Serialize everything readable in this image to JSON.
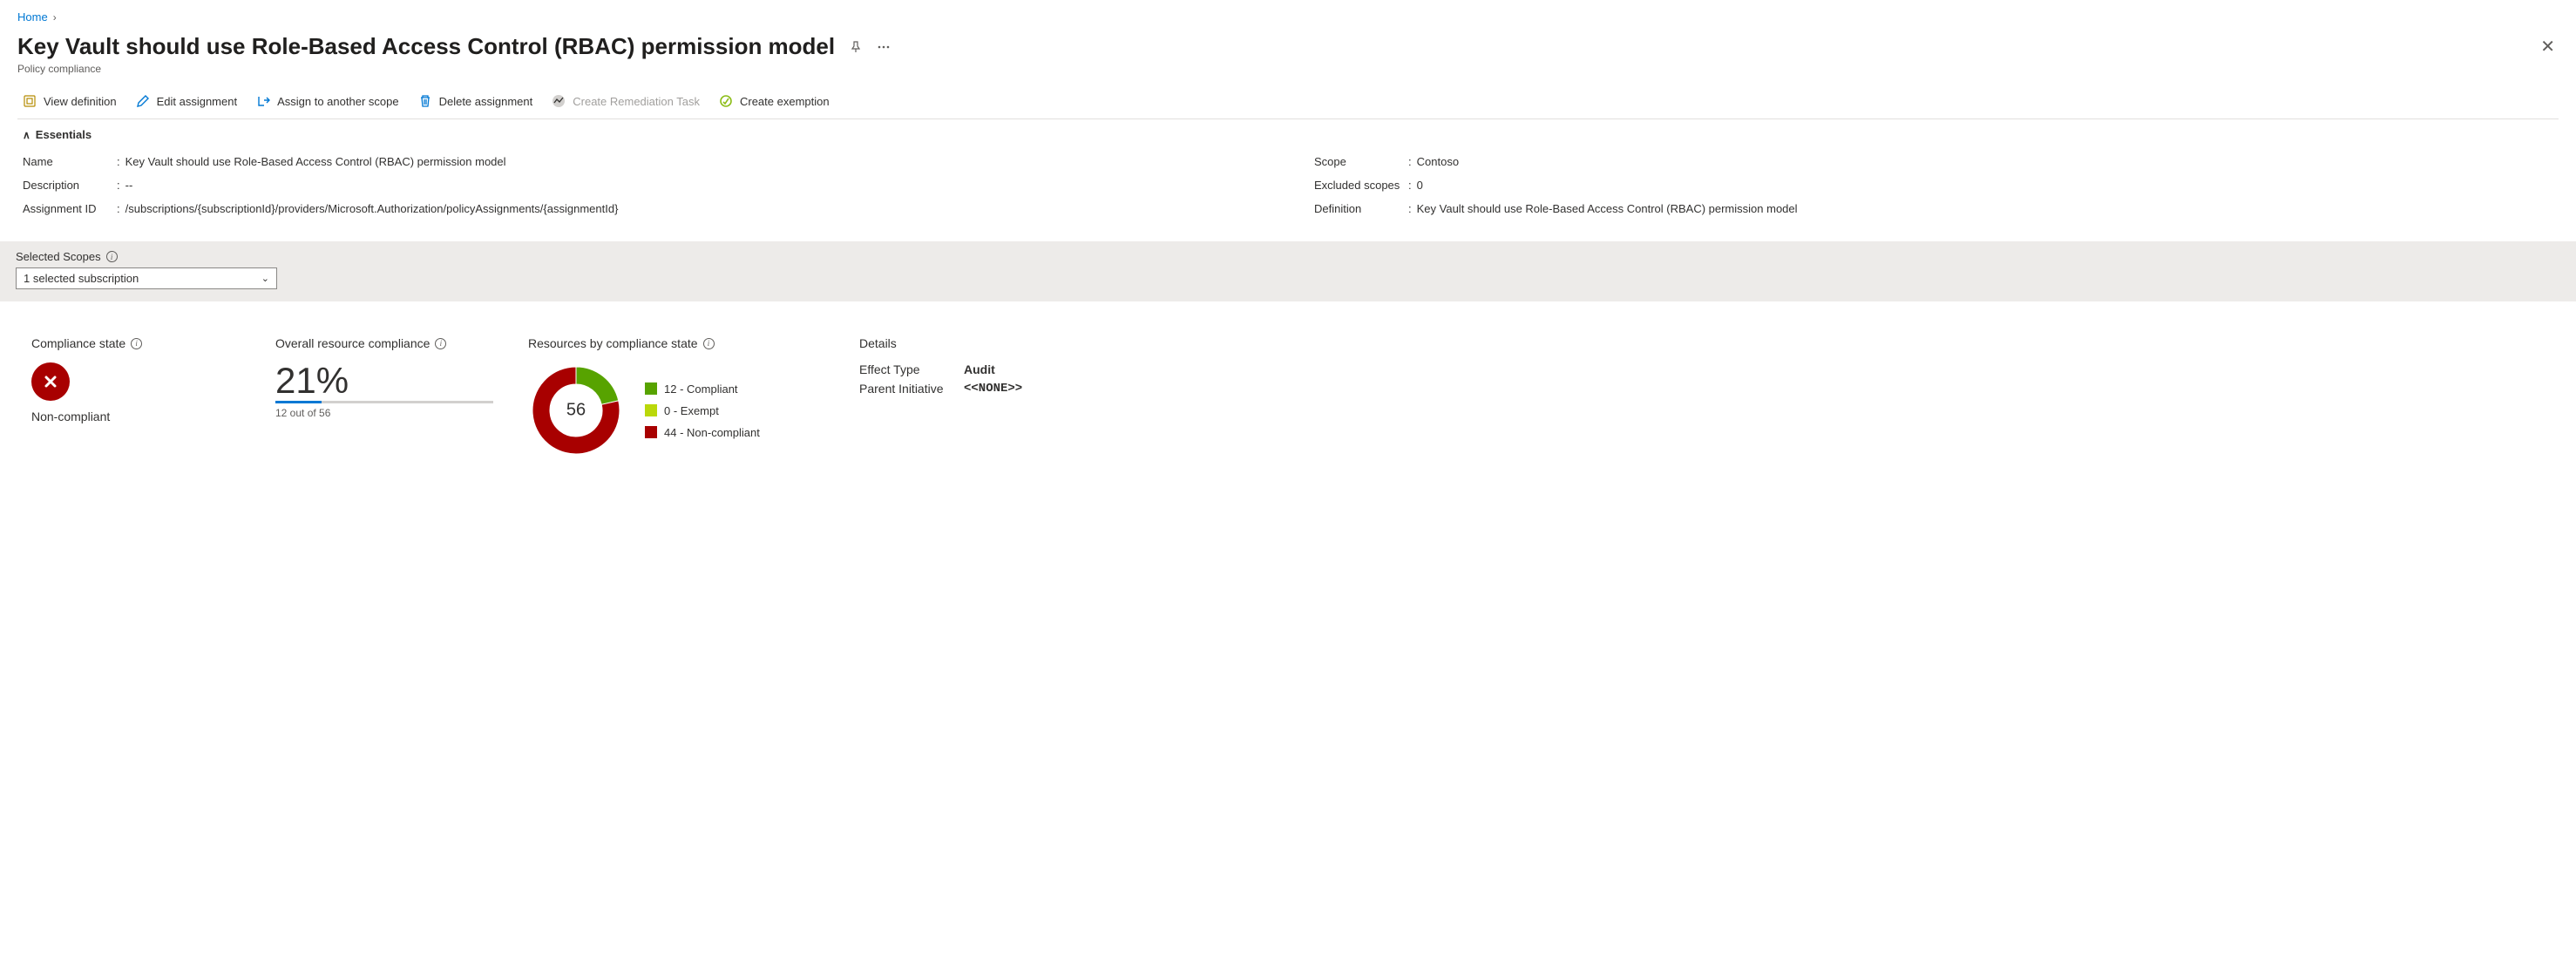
{
  "breadcrumb": {
    "home": "Home"
  },
  "header": {
    "title": "Key Vault should use Role-Based Access Control (RBAC) permission model",
    "subtitle": "Policy compliance"
  },
  "toolbar": {
    "view_definition": "View definition",
    "edit_assignment": "Edit assignment",
    "assign_scope": "Assign to another scope",
    "delete_assignment": "Delete assignment",
    "create_remediation": "Create Remediation Task",
    "create_exemption": "Create exemption"
  },
  "essentials": {
    "header": "Essentials",
    "left": {
      "name_label": "Name",
      "name_value": "Key Vault should use Role-Based Access Control (RBAC) permission model",
      "description_label": "Description",
      "description_value": "--",
      "assignment_id_label": "Assignment ID",
      "assignment_id_value": "/subscriptions/{subscriptionId}/providers/Microsoft.Authorization/policyAssignments/{assignmentId}"
    },
    "right": {
      "scope_label": "Scope",
      "scope_value": "Contoso",
      "excluded_label": "Excluded scopes",
      "excluded_value": "0",
      "definition_label": "Definition",
      "definition_value": "Key Vault should use Role-Based Access Control (RBAC) permission model"
    }
  },
  "scope_band": {
    "label": "Selected Scopes",
    "dropdown_value": "1 selected subscription"
  },
  "stats": {
    "compliance_state": {
      "title": "Compliance state",
      "value": "Non-compliant",
      "icon_color": "#a80000"
    },
    "overall": {
      "title": "Overall resource compliance",
      "percent": "21%",
      "percent_num": 21,
      "subtext": "12 out of 56",
      "bar_fill_color": "#0078d4",
      "bar_bg_color": "#d2d0ce"
    },
    "donut": {
      "title": "Resources by compliance state",
      "total": "56",
      "total_num": 56,
      "segments": {
        "compliant": {
          "label": "12 - Compliant",
          "value": 12,
          "color": "#57a300"
        },
        "exempt": {
          "label": "0 - Exempt",
          "value": 0,
          "color": "#bad80a"
        },
        "noncompliant": {
          "label": "44 - Non-compliant",
          "value": 44,
          "color": "#a80000"
        }
      }
    },
    "details": {
      "title": "Details",
      "effect_label": "Effect Type",
      "effect_value": "Audit",
      "parent_label": "Parent Initiative",
      "parent_value": "<<NONE>>"
    }
  },
  "colors": {
    "link": "#0078d4",
    "text": "#323130",
    "muted": "#605e5c",
    "border": "#e1dfdd",
    "band_bg": "#edebe9"
  }
}
